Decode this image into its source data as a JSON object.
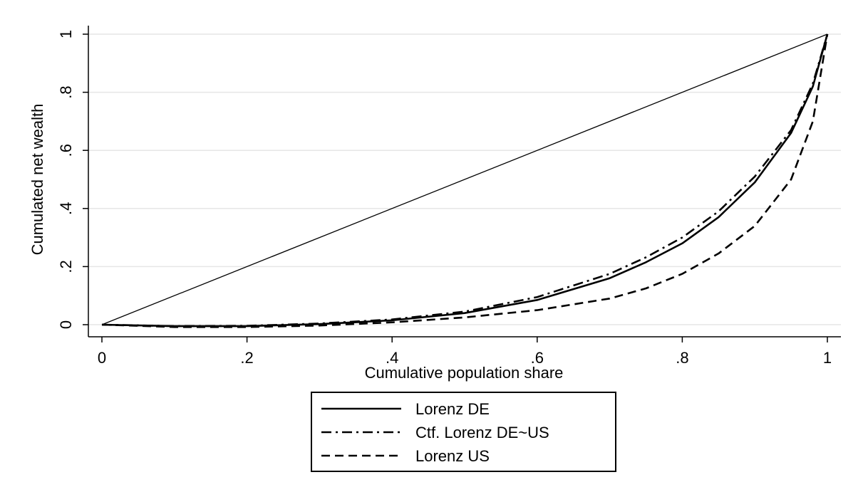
{
  "chart_data": {
    "type": "line",
    "xlabel": "Cumulative population share",
    "ylabel": "Cumulated net wealth",
    "xlim": [
      0,
      1
    ],
    "ylim": [
      0,
      1
    ],
    "x_ticks": [
      {
        "value": 0,
        "label": "0"
      },
      {
        "value": 0.2,
        "label": ".2"
      },
      {
        "value": 0.4,
        "label": ".4"
      },
      {
        "value": 0.6,
        "label": ".6"
      },
      {
        "value": 0.8,
        "label": ".8"
      },
      {
        "value": 1,
        "label": "1"
      }
    ],
    "y_ticks": [
      {
        "value": 0,
        "label": "0"
      },
      {
        "value": 0.2,
        "label": ".2"
      },
      {
        "value": 0.4,
        "label": ".4"
      },
      {
        "value": 0.6,
        "label": ".6"
      },
      {
        "value": 0.8,
        "label": ".8"
      },
      {
        "value": 1,
        "label": "1"
      }
    ],
    "grid": true,
    "legend_position": "bottom",
    "equality_line": {
      "x": [
        0,
        1
      ],
      "y": [
        0,
        1
      ]
    },
    "series": [
      {
        "name": "Lorenz DE",
        "style": "solid",
        "x": [
          0,
          0.1,
          0.2,
          0.3,
          0.4,
          0.5,
          0.6,
          0.7,
          0.75,
          0.8,
          0.85,
          0.9,
          0.95,
          0.98,
          1
        ],
        "y": [
          0,
          -0.005,
          -0.005,
          0.002,
          0.015,
          0.04,
          0.085,
          0.16,
          0.215,
          0.28,
          0.37,
          0.49,
          0.66,
          0.82,
          1
        ]
      },
      {
        "name": "Ctf. Lorenz DE~US",
        "style": "dashdot",
        "x": [
          0,
          0.1,
          0.2,
          0.3,
          0.4,
          0.5,
          0.6,
          0.7,
          0.75,
          0.8,
          0.85,
          0.9,
          0.95,
          0.98,
          1
        ],
        "y": [
          0,
          -0.005,
          -0.004,
          0.004,
          0.018,
          0.045,
          0.095,
          0.175,
          0.232,
          0.3,
          0.39,
          0.51,
          0.67,
          0.83,
          1
        ]
      },
      {
        "name": "Lorenz US",
        "style": "dashed",
        "x": [
          0,
          0.1,
          0.2,
          0.3,
          0.4,
          0.5,
          0.6,
          0.7,
          0.75,
          0.8,
          0.85,
          0.9,
          0.95,
          0.98,
          1
        ],
        "y": [
          0,
          -0.008,
          -0.008,
          -0.003,
          0.008,
          0.025,
          0.05,
          0.09,
          0.125,
          0.175,
          0.245,
          0.34,
          0.5,
          0.7,
          1
        ]
      }
    ]
  }
}
